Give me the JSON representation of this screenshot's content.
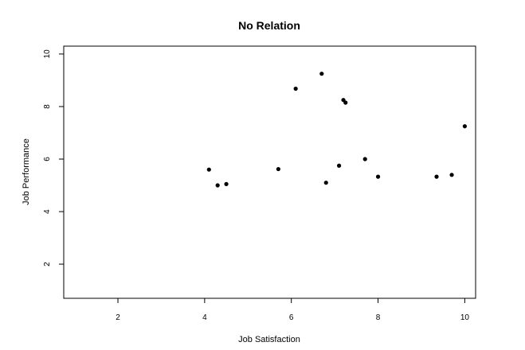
{
  "chart_data": {
    "type": "scatter",
    "title": "No Relation",
    "xlabel": "Job Satisfaction",
    "ylabel": "Job Performance",
    "xlim": [
      0.75,
      10.25
    ],
    "ylim": [
      0.7,
      10.3
    ],
    "x_ticks": [
      2,
      4,
      6,
      8,
      10
    ],
    "y_ticks": [
      2,
      4,
      6,
      8,
      10
    ],
    "x_tick_labels": [
      "2",
      "4",
      "6",
      "8",
      "10"
    ],
    "y_tick_labels": [
      "2",
      "4",
      "6",
      "8",
      "10"
    ],
    "grid": false,
    "point_color": "#000000",
    "points": [
      {
        "x": 4.1,
        "y": 5.6
      },
      {
        "x": 4.3,
        "y": 5.0
      },
      {
        "x": 4.5,
        "y": 5.05
      },
      {
        "x": 5.7,
        "y": 5.62
      },
      {
        "x": 6.1,
        "y": 8.68
      },
      {
        "x": 6.7,
        "y": 9.25
      },
      {
        "x": 6.8,
        "y": 5.1
      },
      {
        "x": 7.1,
        "y": 5.75
      },
      {
        "x": 7.2,
        "y": 8.25
      },
      {
        "x": 7.25,
        "y": 8.15
      },
      {
        "x": 7.7,
        "y": 6.0
      },
      {
        "x": 8.0,
        "y": 5.33
      },
      {
        "x": 9.35,
        "y": 5.33
      },
      {
        "x": 9.7,
        "y": 5.4
      },
      {
        "x": 10.0,
        "y": 7.25
      }
    ]
  }
}
